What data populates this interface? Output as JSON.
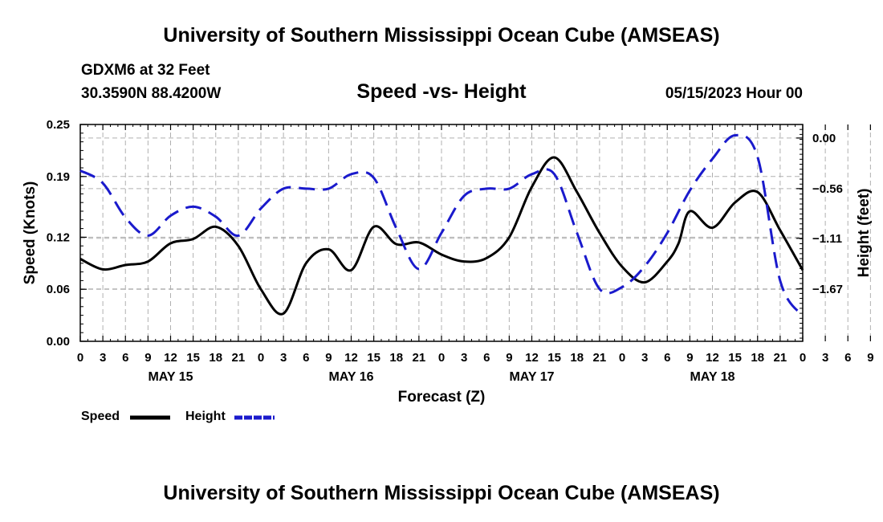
{
  "header": {
    "title": "University of Southern Mississippi Ocean Cube (AMSEAS)",
    "station": "GDXM6 at 32 Feet",
    "coordinates": "30.3590N  88.4200W",
    "chart_title": "Speed -vs- Height",
    "date": "05/15/2023 Hour 00"
  },
  "footer": {
    "title": "University of Southern Mississippi Ocean Cube (AMSEAS)"
  },
  "legend": {
    "speed_label": "Speed",
    "height_label": "Height"
  },
  "colors": {
    "speed": "#000000",
    "height": "#1a1acc",
    "grid": "#b0b0b0"
  },
  "chart_data": {
    "type": "line",
    "title": "Speed -vs- Height",
    "xlabel": "Forecast (Z)",
    "ylabel": "Speed (Knots)",
    "y2label": "Height (feet)",
    "x_tick_labels": [
      "0",
      "3",
      "6",
      "9",
      "12",
      "15",
      "18",
      "21",
      "0",
      "3",
      "6",
      "9",
      "12",
      "15",
      "18",
      "21",
      "0",
      "3",
      "6",
      "9",
      "12",
      "15",
      "18",
      "21",
      "0",
      "3",
      "6",
      "9",
      "12",
      "15",
      "18",
      "21",
      "0",
      "3",
      "6",
      "9",
      "12",
      "15",
      "18",
      "21",
      "0"
    ],
    "day_labels": [
      {
        "label": "MAY 15",
        "hour": 12
      },
      {
        "label": "MAY 16",
        "hour": 36
      },
      {
        "label": "MAY 17",
        "hour": 60
      },
      {
        "label": "MAY 18",
        "hour": 84
      }
    ],
    "xlim": [
      0,
      96
    ],
    "ylim": [
      0,
      0.25
    ],
    "y_ticks": [
      0.0,
      0.06,
      0.12,
      0.19,
      0.25
    ],
    "y_tick_labels": [
      "0.00",
      "0.06",
      "0.12",
      "0.19",
      "0.25"
    ],
    "y2lim": [
      -2.25,
      0.15
    ],
    "y2_ticks": [
      0.0,
      -0.56,
      -1.11,
      -1.67
    ],
    "y2_tick_labels": [
      "0.00",
      "-0.56",
      "-1.11",
      "-1.67"
    ],
    "series": [
      {
        "name": "Speed",
        "axis": "left",
        "style": "solid",
        "x": [
          0,
          3,
          6,
          9,
          12,
          15,
          18,
          21,
          24,
          27,
          30,
          33,
          36,
          39,
          42,
          45,
          48,
          51,
          54,
          57,
          60,
          63,
          66,
          69,
          72,
          75,
          78,
          79.5,
          81,
          84,
          87,
          90,
          93,
          96
        ],
        "values": [
          0.095,
          0.083,
          0.088,
          0.092,
          0.113,
          0.118,
          0.132,
          0.11,
          0.06,
          0.032,
          0.09,
          0.106,
          0.082,
          0.132,
          0.112,
          0.114,
          0.1,
          0.092,
          0.096,
          0.12,
          0.178,
          0.212,
          0.172,
          0.125,
          0.086,
          0.068,
          0.092,
          0.113,
          0.15,
          0.131,
          0.16,
          0.172,
          0.128,
          0.082
        ]
      },
      {
        "name": "Height",
        "axis": "right",
        "style": "dashed",
        "x": [
          0,
          3,
          6,
          9,
          12,
          15,
          18,
          21,
          24,
          27,
          30,
          33,
          36,
          39,
          42,
          45,
          48,
          51,
          54,
          57,
          60,
          63,
          66,
          69,
          72,
          75,
          78,
          81,
          84,
          87,
          90,
          93,
          96
        ],
        "values": [
          -0.36,
          -0.5,
          -0.88,
          -1.08,
          -0.86,
          -0.76,
          -0.87,
          -1.08,
          -0.78,
          -0.56,
          -0.56,
          -0.56,
          -0.4,
          -0.44,
          -1.0,
          -1.45,
          -1.05,
          -0.64,
          -0.56,
          -0.56,
          -0.4,
          -0.4,
          -1.05,
          -1.67,
          -1.65,
          -1.42,
          -1.05,
          -0.58,
          -0.23,
          0.03,
          -0.21,
          -1.58,
          -1.97
        ]
      }
    ]
  }
}
